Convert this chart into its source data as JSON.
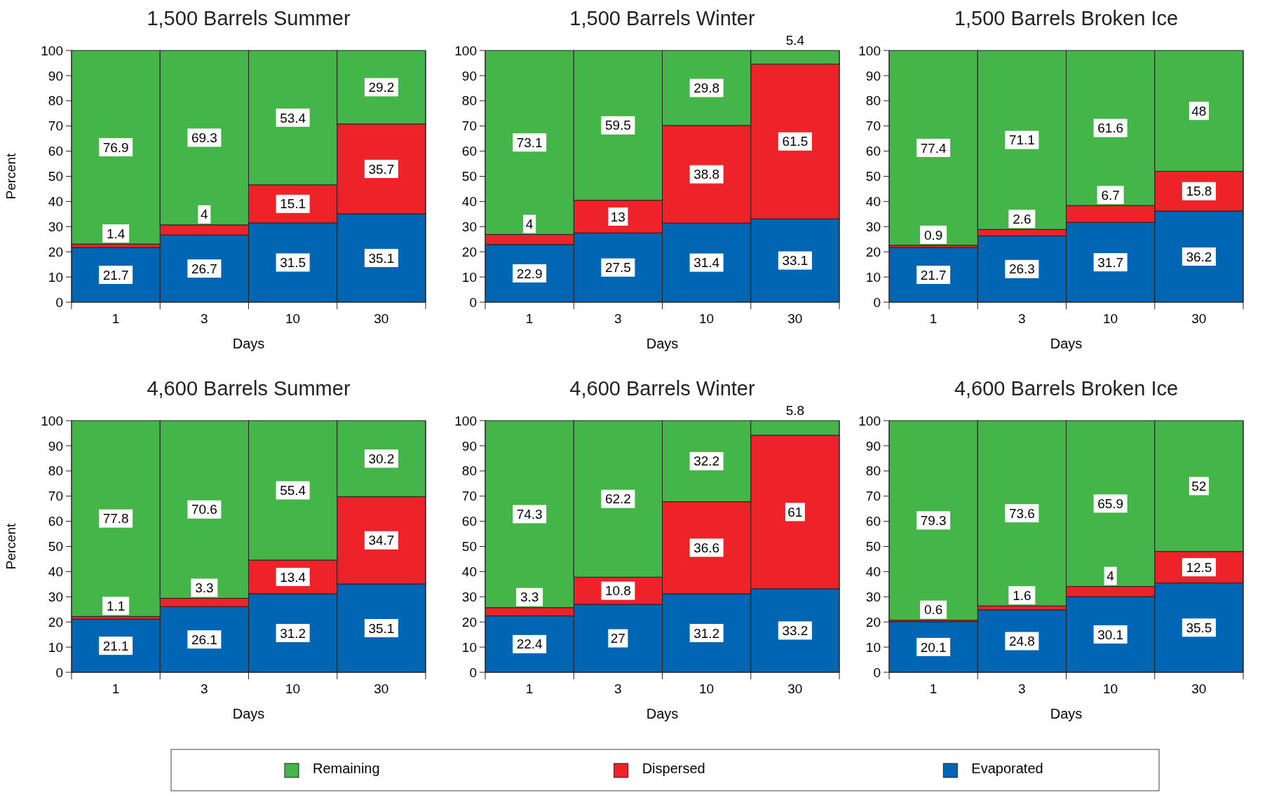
{
  "chart_data": [
    {
      "type": "bar",
      "stacked": true,
      "title": "1,500 Barrels Summer",
      "xlabel": "Days",
      "ylabel": "Percent",
      "categories": [
        "1",
        "3",
        "10",
        "30"
      ],
      "ylim": [
        0,
        100
      ],
      "yticks": [
        0,
        10,
        20,
        30,
        40,
        50,
        60,
        70,
        80,
        90,
        100
      ],
      "data_labels": true,
      "legend": "bottom",
      "series": [
        {
          "name": "Evaporated",
          "color": "#0066b3",
          "values": [
            21.7,
            26.7,
            31.5,
            35.1
          ]
        },
        {
          "name": "Dispersed",
          "color": "#ee2229",
          "values": [
            1.4,
            4,
            15.1,
            35.7
          ]
        },
        {
          "name": "Remaining",
          "color": "#44b549",
          "values": [
            76.9,
            69.3,
            53.4,
            29.2
          ]
        }
      ]
    },
    {
      "type": "bar",
      "stacked": true,
      "title": "1,500 Barrels Winter",
      "xlabel": "Days",
      "categories": [
        "1",
        "3",
        "10",
        "30"
      ],
      "ylim": [
        0,
        100
      ],
      "yticks": [
        0,
        10,
        20,
        30,
        40,
        50,
        60,
        70,
        80,
        90,
        100
      ],
      "data_labels": true,
      "legend": "bottom",
      "series": [
        {
          "name": "Evaporated",
          "color": "#0066b3",
          "values": [
            22.9,
            27.5,
            31.4,
            33.1
          ]
        },
        {
          "name": "Dispersed",
          "color": "#ee2229",
          "values": [
            4,
            13,
            38.8,
            61.5
          ]
        },
        {
          "name": "Remaining",
          "color": "#44b549",
          "values": [
            73.1,
            59.5,
            29.8,
            5.4
          ]
        }
      ]
    },
    {
      "type": "bar",
      "stacked": true,
      "title": "1,500 Barrels Broken Ice",
      "xlabel": "Days",
      "categories": [
        "1",
        "3",
        "10",
        "30"
      ],
      "ylim": [
        0,
        100
      ],
      "yticks": [
        0,
        10,
        20,
        30,
        40,
        50,
        60,
        70,
        80,
        90,
        100
      ],
      "data_labels": true,
      "legend": "bottom",
      "series": [
        {
          "name": "Evaporated",
          "color": "#0066b3",
          "values": [
            21.7,
            26.3,
            31.7,
            36.2
          ]
        },
        {
          "name": "Dispersed",
          "color": "#ee2229",
          "values": [
            0.9,
            2.6,
            6.7,
            15.8
          ]
        },
        {
          "name": "Remaining",
          "color": "#44b549",
          "values": [
            77.4,
            71.1,
            61.6,
            48
          ]
        }
      ]
    },
    {
      "type": "bar",
      "stacked": true,
      "title": "4,600 Barrels Summer",
      "xlabel": "Days",
      "ylabel": "Percent",
      "categories": [
        "1",
        "3",
        "10",
        "30"
      ],
      "ylim": [
        0,
        100
      ],
      "yticks": [
        0,
        10,
        20,
        30,
        40,
        50,
        60,
        70,
        80,
        90,
        100
      ],
      "data_labels": true,
      "legend": "bottom",
      "series": [
        {
          "name": "Evaporated",
          "color": "#0066b3",
          "values": [
            21.1,
            26.1,
            31.2,
            35.1
          ]
        },
        {
          "name": "Dispersed",
          "color": "#ee2229",
          "values": [
            1.1,
            3.3,
            13.4,
            34.7
          ]
        },
        {
          "name": "Remaining",
          "color": "#44b549",
          "values": [
            77.8,
            70.6,
            55.4,
            30.2
          ]
        }
      ]
    },
    {
      "type": "bar",
      "stacked": true,
      "title": "4,600 Barrels Winter",
      "xlabel": "Days",
      "categories": [
        "1",
        "3",
        "10",
        "30"
      ],
      "ylim": [
        0,
        100
      ],
      "yticks": [
        0,
        10,
        20,
        30,
        40,
        50,
        60,
        70,
        80,
        90,
        100
      ],
      "data_labels": true,
      "legend": "bottom",
      "series": [
        {
          "name": "Evaporated",
          "color": "#0066b3",
          "values": [
            22.4,
            27,
            31.2,
            33.2
          ]
        },
        {
          "name": "Dispersed",
          "color": "#ee2229",
          "values": [
            3.3,
            10.8,
            36.6,
            61
          ]
        },
        {
          "name": "Remaining",
          "color": "#44b549",
          "values": [
            74.3,
            62.2,
            32.2,
            5.8
          ]
        }
      ]
    },
    {
      "type": "bar",
      "stacked": true,
      "title": "4,600 Barrels Broken Ice",
      "xlabel": "Days",
      "categories": [
        "1",
        "3",
        "10",
        "30"
      ],
      "ylim": [
        0,
        100
      ],
      "yticks": [
        0,
        10,
        20,
        30,
        40,
        50,
        60,
        70,
        80,
        90,
        100
      ],
      "data_labels": true,
      "legend": "bottom",
      "series": [
        {
          "name": "Evaporated",
          "color": "#0066b3",
          "values": [
            20.1,
            24.8,
            30.1,
            35.5
          ]
        },
        {
          "name": "Dispersed",
          "color": "#ee2229",
          "values": [
            0.6,
            1.6,
            4,
            12.5
          ]
        },
        {
          "name": "Remaining",
          "color": "#44b549",
          "values": [
            79.3,
            73.6,
            65.9,
            52
          ]
        }
      ]
    }
  ]
}
